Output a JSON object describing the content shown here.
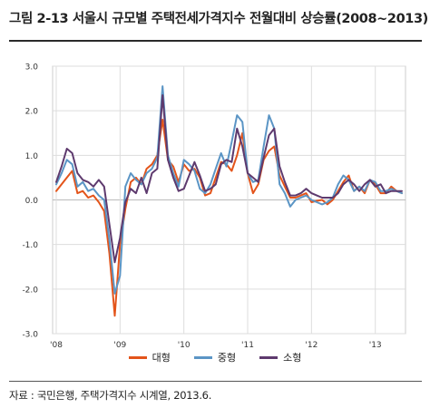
{
  "title": "그림 2-13 서울시 규모별 주택전세가격지수 전월대비 상승률(2008~2013)",
  "source": "자료 : 국민은행, 주택가격지수 시계열, 2013.6.",
  "colors": {
    "large": "#e3541a",
    "medium": "#5b95c5",
    "small": "#5e3a6e",
    "grid": "#dddddd",
    "axis": "#888888"
  },
  "chart_data": {
    "type": "line",
    "ylim": [
      -3.0,
      3.0
    ],
    "yticks": [
      "3.0",
      "2.0",
      "1.0",
      "0.0",
      "-1.0",
      "-2.0",
      "-3.0"
    ],
    "ytick_values": [
      3,
      2,
      1,
      0,
      -1,
      -2,
      -3
    ],
    "xtick_labels": [
      "'08",
      "'09",
      "'10",
      "'11",
      "'12",
      "'13"
    ],
    "xtick_index": [
      0,
      12,
      24,
      36,
      48,
      60
    ],
    "n_points": 66,
    "grid": true,
    "legend_placement": "bottom",
    "series": [
      {
        "name": "대형",
        "color": "#e3541a",
        "values": [
          0.2,
          0.35,
          0.5,
          0.65,
          0.15,
          0.2,
          0.05,
          0.1,
          -0.05,
          -0.25,
          -1.2,
          -2.6,
          -1.0,
          -0.2,
          0.4,
          0.5,
          0.35,
          0.7,
          0.8,
          1.0,
          1.8,
          0.9,
          0.75,
          0.4,
          0.8,
          0.65,
          0.7,
          0.5,
          0.1,
          0.15,
          0.5,
          0.85,
          0.8,
          0.65,
          1.0,
          1.5,
          0.6,
          0.15,
          0.35,
          0.9,
          1.1,
          1.2,
          0.55,
          0.3,
          0.05,
          0.05,
          0.1,
          0.15,
          -0.05,
          -0.02,
          0.0,
          -0.1,
          0.0,
          0.2,
          0.4,
          0.55,
          0.2,
          0.3,
          0.15,
          0.45,
          0.35,
          0.15,
          0.15,
          0.3,
          0.2,
          0.15
        ]
      },
      {
        "name": "중형",
        "color": "#5b95c5",
        "values": [
          0.35,
          0.6,
          0.9,
          0.8,
          0.3,
          0.4,
          0.2,
          0.25,
          0.1,
          0.0,
          -0.9,
          -2.1,
          -1.7,
          0.3,
          0.6,
          0.45,
          0.35,
          0.6,
          0.7,
          0.95,
          2.55,
          1.0,
          0.6,
          0.3,
          0.9,
          0.8,
          0.65,
          0.25,
          0.15,
          0.35,
          0.7,
          1.05,
          0.75,
          1.3,
          1.9,
          1.75,
          0.6,
          0.4,
          0.45,
          1.2,
          1.9,
          1.6,
          0.35,
          0.15,
          -0.15,
          0.0,
          0.05,
          0.1,
          0.0,
          -0.05,
          -0.1,
          -0.05,
          0.05,
          0.35,
          0.55,
          0.45,
          0.2,
          0.3,
          0.2,
          0.45,
          0.4,
          0.2,
          0.2,
          0.25,
          0.2,
          0.15
        ]
      },
      {
        "name": "소형",
        "color": "#5e3a6e",
        "values": [
          0.4,
          0.75,
          1.15,
          1.05,
          0.6,
          0.45,
          0.4,
          0.3,
          0.45,
          0.3,
          -0.55,
          -1.4,
          -0.85,
          -0.05,
          0.25,
          0.15,
          0.5,
          0.15,
          0.6,
          0.7,
          2.35,
          0.9,
          0.5,
          0.2,
          0.25,
          0.55,
          0.85,
          0.55,
          0.2,
          0.25,
          0.35,
          0.8,
          0.9,
          0.85,
          1.6,
          1.2,
          0.6,
          0.5,
          0.4,
          0.95,
          1.45,
          1.6,
          0.75,
          0.4,
          0.1,
          0.1,
          0.15,
          0.25,
          0.15,
          0.1,
          0.05,
          0.05,
          0.05,
          0.15,
          0.35,
          0.45,
          0.35,
          0.2,
          0.35,
          0.45,
          0.3,
          0.35,
          0.15,
          0.2,
          0.2,
          0.2
        ]
      }
    ]
  }
}
